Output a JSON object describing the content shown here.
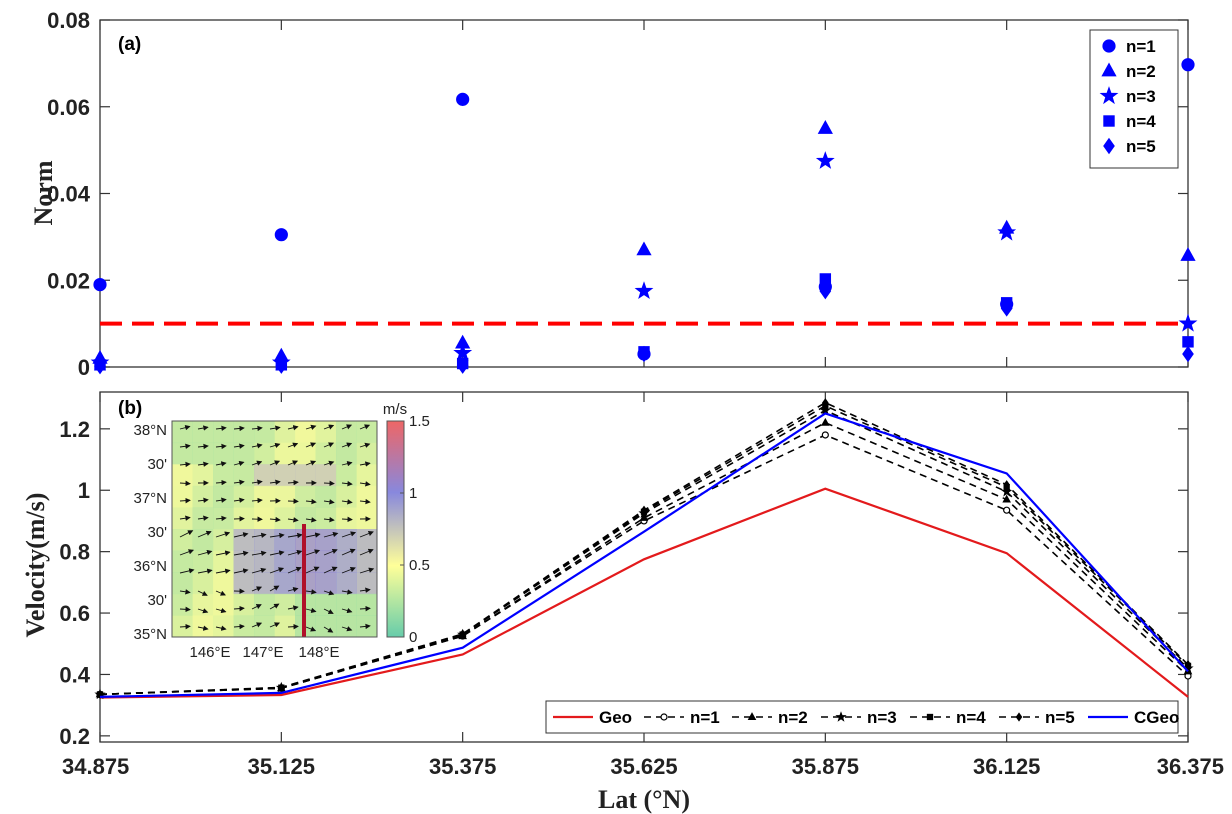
{
  "chart_data": [
    {
      "type": "scatter",
      "panel_label": "(a)",
      "ylabel": "Norm",
      "xlim": [
        34.875,
        36.375
      ],
      "ylim": [
        0,
        0.08
      ],
      "yticks": [
        "0",
        "0.02",
        "0.04",
        "0.06",
        "0.08"
      ],
      "x": [
        34.875,
        35.125,
        35.375,
        35.625,
        35.875,
        36.125,
        36.375
      ],
      "threshold": {
        "value": 0.01,
        "color": "#ff0000"
      },
      "legend_position": "top-right",
      "color": "#0000ff",
      "series": [
        {
          "name": "n=1",
          "marker": "circle",
          "values": [
            0.019,
            0.0305,
            0.0617,
            0.003,
            0.0185,
            0.0145,
            0.0697
          ]
        },
        {
          "name": "n=2",
          "marker": "triangle",
          "values": [
            0.002,
            0.0025,
            0.0055,
            0.027,
            0.055,
            0.032,
            0.0257
          ]
        },
        {
          "name": "n=3",
          "marker": "star",
          "values": [
            0.001,
            0.001,
            0.0032,
            0.0175,
            0.0475,
            0.031,
            0.01
          ]
        },
        {
          "name": "n=4",
          "marker": "square",
          "values": [
            0.0005,
            0.0005,
            0.0008,
            0.0035,
            0.0203,
            0.0148,
            0.0058
          ]
        },
        {
          "name": "n=5",
          "marker": "diamond",
          "values": [
            0.0002,
            0.0003,
            0.0003,
            0.003,
            0.0175,
            0.0135,
            0.003
          ]
        }
      ]
    },
    {
      "type": "line",
      "panel_label": "(b)",
      "xlabel": "Lat (°N)",
      "ylabel": "Velocity(m/s)",
      "xlim": [
        34.875,
        36.375
      ],
      "ylim": [
        0.18,
        1.32
      ],
      "xticks": [
        "34.875",
        "35.125",
        "35.375",
        "35.625",
        "35.875",
        "36.125",
        "36.375"
      ],
      "yticks": [
        "0.2",
        "0.4",
        "0.6",
        "0.8",
        "1",
        "1.2"
      ],
      "x": [
        34.875,
        35.125,
        35.375,
        35.625,
        35.875,
        36.125,
        36.375
      ],
      "legend_position": "bottom-right",
      "series": [
        {
          "name": "Geo",
          "color": "#e31a1c",
          "dash": "solid",
          "marker": "none",
          "values": [
            0.325,
            0.333,
            0.465,
            0.775,
            1.005,
            0.795,
            0.327
          ]
        },
        {
          "name": "n=1",
          "color": "#000000",
          "dash": "dashed",
          "marker": "circle",
          "values": [
            0.335,
            0.355,
            0.525,
            0.9,
            1.18,
            0.935,
            0.395
          ]
        },
        {
          "name": "n=2",
          "color": "#000000",
          "dash": "dashed",
          "marker": "triangle",
          "values": [
            0.335,
            0.355,
            0.525,
            0.91,
            1.22,
            0.97,
            0.41
          ]
        },
        {
          "name": "n=3",
          "color": "#000000",
          "dash": "dashed",
          "marker": "star",
          "values": [
            0.335,
            0.357,
            0.53,
            0.925,
            1.26,
            0.995,
            0.42
          ]
        },
        {
          "name": "n=4",
          "color": "#000000",
          "dash": "dashed",
          "marker": "square",
          "values": [
            0.335,
            0.357,
            0.53,
            0.93,
            1.275,
            1.01,
            0.428
          ]
        },
        {
          "name": "n=5",
          "color": "#000000",
          "dash": "dashed",
          "marker": "diamond",
          "values": [
            0.335,
            0.358,
            0.532,
            0.935,
            1.285,
            1.018,
            0.432
          ]
        },
        {
          "name": "CGeo",
          "color": "#0000ff",
          "dash": "solid",
          "marker": "none",
          "values": [
            0.327,
            0.34,
            0.487,
            0.865,
            1.25,
            1.055,
            0.41
          ]
        }
      ]
    },
    {
      "type": "heatmap",
      "description_role": "inset map",
      "colorbar": {
        "unit": "m/s",
        "range": [
          0,
          1.5
        ],
        "ticks": [
          "0",
          "0.5",
          "1",
          "1.5"
        ],
        "colors": [
          "#66ccaa",
          "#ffff99",
          "#8888dd",
          "#ee6666"
        ]
      },
      "lat_ticks": [
        "38°N",
        "30'",
        "37°N",
        "30'",
        "36°N",
        "30'",
        "35°N"
      ],
      "lon_ticks": [
        "146°E",
        "147°E",
        "148°E"
      ],
      "section_line_color": "#b0102a"
    }
  ]
}
